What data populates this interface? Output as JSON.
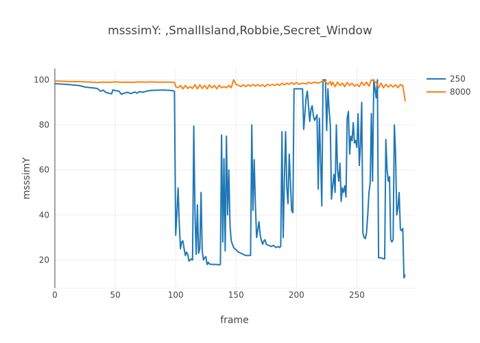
{
  "chart_data": {
    "type": "line",
    "title": "msssimY: ,SmallIsland,Robbie,Secret_Window",
    "xlabel": "frame",
    "ylabel": "msssimY",
    "xlim": [
      0,
      298
    ],
    "ylim": [
      7.5,
      105
    ],
    "xticks": [
      0,
      50,
      100,
      150,
      200,
      250
    ],
    "yticks": [
      20,
      40,
      60,
      80,
      100
    ],
    "grid": true,
    "legend_position": "top-right",
    "series": [
      {
        "name": "250",
        "color": "#1f77b4",
        "points": [
          [
            0,
            98.3
          ],
          [
            10,
            98.0
          ],
          [
            20,
            97.5
          ],
          [
            25,
            96.8
          ],
          [
            30,
            96.5
          ],
          [
            35,
            96.2
          ],
          [
            38,
            94.9
          ],
          [
            40,
            95.5
          ],
          [
            42,
            94.5
          ],
          [
            45,
            94.0
          ],
          [
            47,
            93.8
          ],
          [
            48,
            95.6
          ],
          [
            50,
            95.2
          ],
          [
            53,
            95.0
          ],
          [
            55,
            93.6
          ],
          [
            57,
            94.0
          ],
          [
            60,
            94.5
          ],
          [
            63,
            93.9
          ],
          [
            66,
            94.6
          ],
          [
            68,
            94.1
          ],
          [
            70,
            94.8
          ],
          [
            73,
            94.5
          ],
          [
            76,
            95.0
          ],
          [
            80,
            95.3
          ],
          [
            85,
            95.4
          ],
          [
            90,
            95.5
          ],
          [
            95,
            95.3
          ],
          [
            98,
            95.2
          ],
          [
            99,
            94.8
          ],
          [
            100,
            31.0
          ],
          [
            101,
            40.0
          ],
          [
            102,
            52.0
          ],
          [
            103,
            36.0
          ],
          [
            104,
            25.0
          ],
          [
            105,
            28.0
          ],
          [
            106,
            28.5
          ],
          [
            107,
            25.0
          ],
          [
            108,
            22.0
          ],
          [
            109,
            23.5
          ],
          [
            110,
            22.5
          ],
          [
            111,
            19.5
          ],
          [
            112,
            20.0
          ],
          [
            113,
            20.5
          ],
          [
            114,
            20.0
          ],
          [
            115,
            79.5
          ],
          [
            116,
            40.0
          ],
          [
            117,
            22.5
          ],
          [
            118,
            44.5
          ],
          [
            119,
            23.0
          ],
          [
            120,
            25.0
          ],
          [
            121,
            50.0
          ],
          [
            122,
            24.0
          ],
          [
            123,
            20.0
          ],
          [
            124,
            21.0
          ],
          [
            125,
            21.5
          ],
          [
            126,
            18.0
          ],
          [
            127,
            19.0
          ],
          [
            128,
            18.2
          ],
          [
            130,
            18.0
          ],
          [
            132,
            18.0
          ],
          [
            134,
            18.0
          ],
          [
            136,
            17.8
          ],
          [
            137,
            18.0
          ],
          [
            138,
            75.5
          ],
          [
            139,
            28.0
          ],
          [
            140,
            65.0
          ],
          [
            141,
            24.0
          ],
          [
            142,
            75.0
          ],
          [
            143,
            40.0
          ],
          [
            144,
            60.0
          ],
          [
            145,
            35.0
          ],
          [
            146,
            28.5
          ],
          [
            148,
            25.5
          ],
          [
            150,
            24.5
          ],
          [
            152,
            23.5
          ],
          [
            154,
            23.0
          ],
          [
            156,
            22.5
          ],
          [
            158,
            22.0
          ],
          [
            160,
            22.0
          ],
          [
            162,
            22.0
          ],
          [
            163,
            80.0
          ],
          [
            164,
            42.0
          ],
          [
            165,
            64.5
          ],
          [
            166,
            45.0
          ],
          [
            167,
            30.0
          ],
          [
            168,
            33.5
          ],
          [
            169,
            37.0
          ],
          [
            170,
            31.0
          ],
          [
            171,
            28.5
          ],
          [
            172,
            27.0
          ],
          [
            173,
            28.5
          ],
          [
            174,
            29.0
          ],
          [
            175,
            27.0
          ],
          [
            177,
            26.5
          ],
          [
            179,
            26.0
          ],
          [
            181,
            26.5
          ],
          [
            183,
            25.5
          ],
          [
            185,
            26.0
          ],
          [
            186,
            25.5
          ],
          [
            187,
            26.0
          ],
          [
            188,
            77.0
          ],
          [
            189,
            30.0
          ],
          [
            190,
            55.0
          ],
          [
            191,
            77.0
          ],
          [
            192,
            52.0
          ],
          [
            193,
            45.0
          ],
          [
            194,
            67.0
          ],
          [
            195,
            55.0
          ],
          [
            196,
            42.0
          ],
          [
            197,
            41.0
          ],
          [
            198,
            96.0
          ],
          [
            200,
            96.0
          ],
          [
            205,
            96.0
          ],
          [
            206,
            78.0
          ],
          [
            208,
            92.0
          ],
          [
            209,
            95.0
          ],
          [
            210,
            88.0
          ],
          [
            211,
            81.5
          ],
          [
            212,
            87.0
          ],
          [
            213,
            88.5
          ],
          [
            214,
            84.0
          ],
          [
            215,
            82.0
          ],
          [
            216,
            83.0
          ],
          [
            217,
            84.5
          ],
          [
            218,
            51.5
          ],
          [
            219,
            83.0
          ],
          [
            220,
            64.0
          ],
          [
            221,
            44.0
          ],
          [
            222,
            100.0
          ],
          [
            224,
            100.0
          ],
          [
            225,
            77.5
          ],
          [
            226,
            96.0
          ],
          [
            227,
            87.0
          ],
          [
            228,
            80.0
          ],
          [
            229,
            47.0
          ],
          [
            230,
            53.0
          ],
          [
            231,
            58.0
          ],
          [
            232,
            50.0
          ],
          [
            233,
            80.0
          ],
          [
            234,
            60.0
          ],
          [
            235,
            55.0
          ],
          [
            236,
            63.0
          ],
          [
            237,
            46.0
          ],
          [
            238,
            52.0
          ],
          [
            239,
            50.0
          ],
          [
            240,
            53.0
          ],
          [
            241,
            48.0
          ],
          [
            242,
            83.0
          ],
          [
            243,
            86.0
          ],
          [
            244,
            67.0
          ],
          [
            245,
            75.0
          ],
          [
            246,
            73.0
          ],
          [
            247,
            81.0
          ],
          [
            248,
            72.0
          ],
          [
            249,
            73.0
          ],
          [
            250,
            70.0
          ],
          [
            251,
            85.0
          ],
          [
            252,
            62.0
          ],
          [
            253,
            71.0
          ],
          [
            254,
            90.0
          ],
          [
            255,
            32.0
          ],
          [
            256,
            30.0
          ],
          [
            257,
            29.5
          ],
          [
            258,
            32.0
          ],
          [
            259,
            40.0
          ],
          [
            260,
            50.0
          ],
          [
            261,
            54.0
          ],
          [
            262,
            85.0
          ],
          [
            263,
            55.0
          ],
          [
            264,
            100.0
          ],
          [
            265,
            96.0
          ],
          [
            266,
            92.0
          ],
          [
            267,
            100.0
          ],
          [
            268,
            21.0
          ],
          [
            270,
            21.0
          ],
          [
            272,
            20.5
          ],
          [
            273,
            20.5
          ],
          [
            274,
            73.5
          ],
          [
            275,
            60.0
          ],
          [
            276,
            55.0
          ],
          [
            277,
            57.0
          ],
          [
            278,
            29.0
          ],
          [
            279,
            28.0
          ],
          [
            280,
            29.0
          ],
          [
            281,
            80.0
          ],
          [
            282,
            68.0
          ],
          [
            283,
            40.0
          ],
          [
            284,
            43.0
          ],
          [
            285,
            50.0
          ],
          [
            286,
            33.5
          ],
          [
            287,
            33.0
          ],
          [
            288,
            34.0
          ],
          [
            289,
            12.0
          ],
          [
            290,
            13.5
          ]
        ]
      },
      {
        "name": "8000",
        "color": "#ff7f0e",
        "points": [
          [
            0,
            99.5
          ],
          [
            5,
            99.4
          ],
          [
            10,
            99.3
          ],
          [
            15,
            99.2
          ],
          [
            20,
            99.2
          ],
          [
            25,
            99.1
          ],
          [
            30,
            99.0
          ],
          [
            35,
            98.8
          ],
          [
            40,
            99.0
          ],
          [
            45,
            98.9
          ],
          [
            50,
            99.1
          ],
          [
            55,
            98.9
          ],
          [
            60,
            99.0
          ],
          [
            65,
            98.9
          ],
          [
            70,
            99.1
          ],
          [
            75,
            99.0
          ],
          [
            80,
            99.1
          ],
          [
            85,
            99.0
          ],
          [
            90,
            99.0
          ],
          [
            95,
            99.0
          ],
          [
            99,
            98.9
          ],
          [
            100,
            97.0
          ],
          [
            102,
            96.5
          ],
          [
            104,
            97.5
          ],
          [
            106,
            96.0
          ],
          [
            108,
            97.5
          ],
          [
            110,
            96.2
          ],
          [
            112,
            97.0
          ],
          [
            114,
            96.2
          ],
          [
            116,
            97.8
          ],
          [
            118,
            96.0
          ],
          [
            120,
            97.8
          ],
          [
            122,
            96.2
          ],
          [
            124,
            97.5
          ],
          [
            126,
            96.0
          ],
          [
            128,
            97.8
          ],
          [
            130,
            96.4
          ],
          [
            132,
            97.5
          ],
          [
            134,
            96.0
          ],
          [
            136,
            97.6
          ],
          [
            138,
            96.5
          ],
          [
            140,
            97.0
          ],
          [
            142,
            96.5
          ],
          [
            144,
            97.5
          ],
          [
            146,
            96.5
          ],
          [
            148,
            100.0
          ],
          [
            150,
            98.0
          ],
          [
            152,
            97.5
          ],
          [
            154,
            97.0
          ],
          [
            156,
            97.8
          ],
          [
            158,
            97.0
          ],
          [
            160,
            97.8
          ],
          [
            162,
            97.2
          ],
          [
            164,
            98.0
          ],
          [
            166,
            97.2
          ],
          [
            168,
            98.0
          ],
          [
            170,
            97.2
          ],
          [
            172,
            97.8
          ],
          [
            174,
            97.0
          ],
          [
            176,
            98.0
          ],
          [
            178,
            97.5
          ],
          [
            180,
            98.0
          ],
          [
            182,
            97.5
          ],
          [
            184,
            98.2
          ],
          [
            186,
            97.5
          ],
          [
            188,
            98.5
          ],
          [
            190,
            97.8
          ],
          [
            192,
            98.5
          ],
          [
            194,
            98.0
          ],
          [
            196,
            98.8
          ],
          [
            198,
            98.0
          ],
          [
            200,
            98.8
          ],
          [
            202,
            98.0
          ],
          [
            205,
            98.5
          ],
          [
            208,
            98.2
          ],
          [
            210,
            98.9
          ],
          [
            212,
            98.4
          ],
          [
            215,
            99.0
          ],
          [
            218,
            98.5
          ],
          [
            220,
            99.0
          ],
          [
            222,
            99.5
          ],
          [
            224,
            99.2
          ],
          [
            226,
            98.0
          ],
          [
            228,
            99.2
          ],
          [
            229,
            97.5
          ],
          [
            230,
            99.0
          ],
          [
            232,
            97.0
          ],
          [
            234,
            99.0
          ],
          [
            236,
            97.5
          ],
          [
            238,
            98.5
          ],
          [
            240,
            97.0
          ],
          [
            242,
            98.8
          ],
          [
            244,
            97.5
          ],
          [
            246,
            98.5
          ],
          [
            248,
            97.2
          ],
          [
            250,
            98.0
          ],
          [
            252,
            97.0
          ],
          [
            254,
            99.0
          ],
          [
            256,
            97.5
          ],
          [
            258,
            99.0
          ],
          [
            260,
            97.2
          ],
          [
            262,
            100.0
          ],
          [
            264,
            99.5
          ],
          [
            266,
            98.8
          ],
          [
            268,
            96.5
          ],
          [
            270,
            98.5
          ],
          [
            272,
            96.5
          ],
          [
            274,
            98.0
          ],
          [
            276,
            96.8
          ],
          [
            278,
            97.8
          ],
          [
            280,
            96.8
          ],
          [
            282,
            97.8
          ],
          [
            284,
            96.5
          ],
          [
            286,
            98.0
          ],
          [
            287,
            97.5
          ],
          [
            288,
            97.5
          ],
          [
            290,
            90.5
          ]
        ]
      }
    ]
  }
}
